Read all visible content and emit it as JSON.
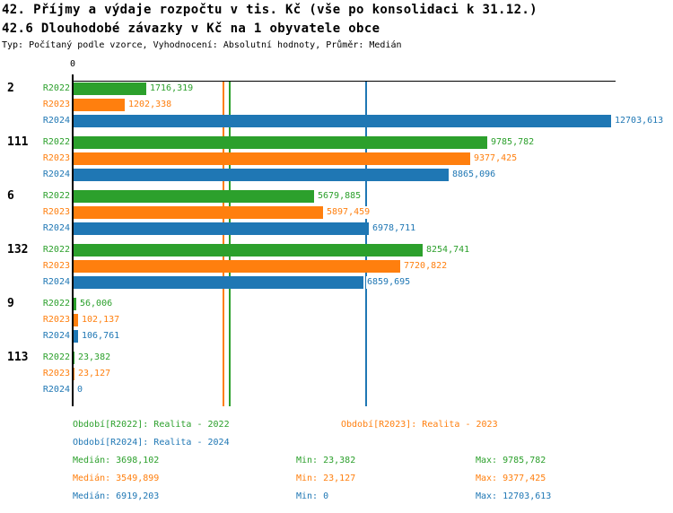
{
  "header": {
    "title": "42. Příjmy a výdaje rozpočtu v tis. Kč (vše po konsolidaci k 31.12.)",
    "subtitle": "42.6 Dlouhodobé závazky v Kč na 1 obyvatele obce",
    "meta": "Typ: Počítaný podle vzorce, Vyhodnocení: Absolutní hodnoty, Průměr: Medián"
  },
  "axis": {
    "zero_label": "0"
  },
  "stats_labels": {
    "median": "Medián:",
    "min": "Min:",
    "max": "Max:"
  },
  "colors": {
    "r2022": "#2ca02c",
    "r2023": "#ff7f0e",
    "r2024": "#1f77b4",
    "axis": "#000000",
    "background": "#ffffff"
  },
  "chart_data": {
    "type": "bar",
    "orientation": "horizontal",
    "title": "42.6 Dlouhodobé závazky v Kč na 1 obyvatele obce",
    "xlim": [
      0,
      12750
    ],
    "grid": false,
    "legend_position": "bottom",
    "categories": [
      "2",
      "111",
      "6",
      "132",
      "9",
      "113"
    ],
    "series": [
      {
        "name": "R2022",
        "legend": "Období[R2022]: Realita - 2022",
        "color": "#2ca02c",
        "values": [
          1716.319,
          9785.782,
          5679.885,
          8254.741,
          56.006,
          23.382
        ],
        "value_labels": [
          "1716,319",
          "9785,782",
          "5679,885",
          "8254,741",
          "56,006",
          "23,382"
        ],
        "median": 3698.102,
        "stats": {
          "median": "3698,102",
          "min": "23,382",
          "max": "9785,782"
        }
      },
      {
        "name": "R2023",
        "legend": "Období[R2023]: Realita - 2023",
        "color": "#ff7f0e",
        "values": [
          1202.338,
          9377.425,
          5897.459,
          7720.822,
          102.137,
          23.127
        ],
        "value_labels": [
          "1202,338",
          "9377,425",
          "5897,459",
          "7720,822",
          "102,137",
          "23,127"
        ],
        "median": 3549.899,
        "stats": {
          "median": "3549,899",
          "min": "23,127",
          "max": "9377,425"
        }
      },
      {
        "name": "R2024",
        "legend": "Období[R2024]: Realita - 2024",
        "color": "#1f77b4",
        "values": [
          12703.613,
          8865.096,
          6978.711,
          6859.695,
          106.761,
          0
        ],
        "value_labels": [
          "12703,613",
          "8865,096",
          "6978,711",
          "6859,695",
          "106,761",
          "0"
        ],
        "median": 6919.203,
        "stats": {
          "median": "6919,203",
          "min": "0",
          "max": "12703,613"
        }
      }
    ]
  }
}
